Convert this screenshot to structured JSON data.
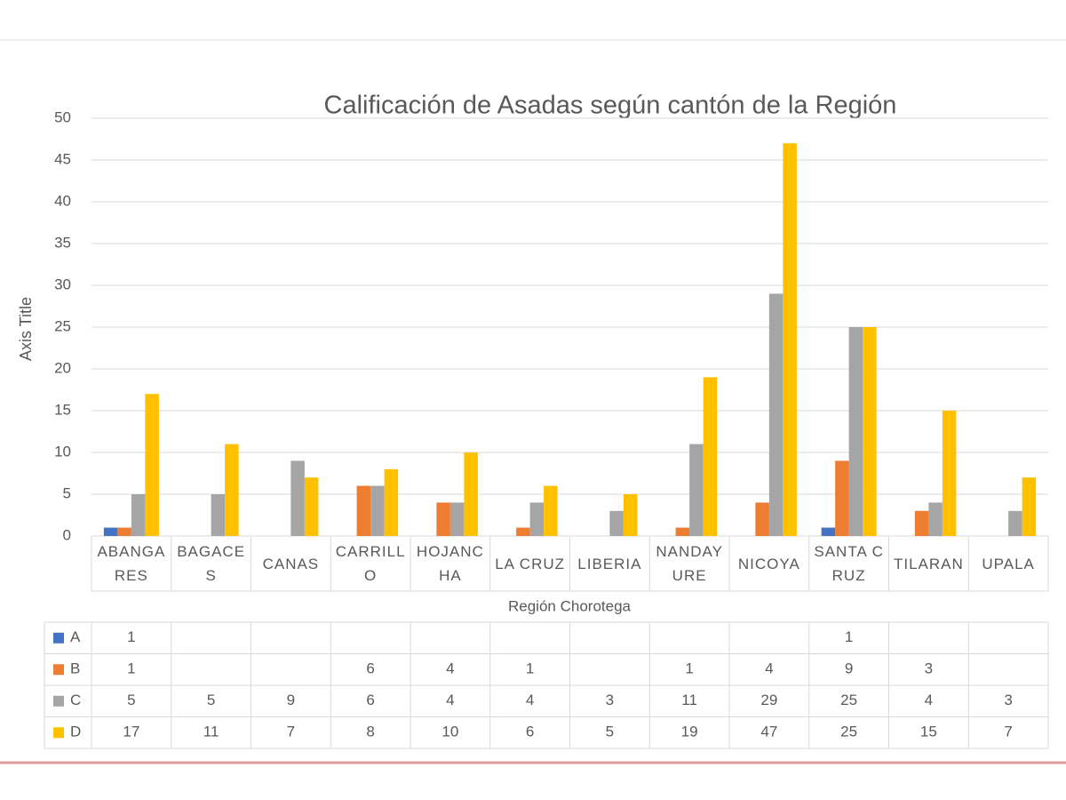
{
  "chart_data": {
    "type": "bar",
    "title": "Calificación de Asadas según cantón de la Región",
    "y_label": "Axis Title",
    "x_label": "Región Chorotega",
    "categories": [
      "ABANGARES",
      "BAGACES",
      "CANAS",
      "CARRILLO",
      "HOJANCHA",
      "LA CRUZ",
      "LIBERIA",
      "NANDAYURE",
      "NICOYA",
      "SANTA CRUZ",
      "TILARAN",
      "UPALA"
    ],
    "series": [
      {
        "name": "A",
        "color": "#4472c4",
        "values": [
          1,
          null,
          null,
          null,
          null,
          null,
          null,
          null,
          null,
          1,
          null,
          null
        ]
      },
      {
        "name": "B",
        "color": "#ed7d31",
        "values": [
          1,
          null,
          null,
          6,
          4,
          1,
          null,
          1,
          4,
          9,
          3,
          null
        ]
      },
      {
        "name": "C",
        "color": "#a5a5a5",
        "values": [
          5,
          5,
          9,
          6,
          4,
          4,
          3,
          11,
          29,
          25,
          4,
          3
        ]
      },
      {
        "name": "D",
        "color": "#ffc000",
        "values": [
          17,
          11,
          7,
          8,
          10,
          6,
          5,
          19,
          47,
          25,
          15,
          7
        ]
      }
    ],
    "ylim": [
      0,
      50
    ],
    "yticks": [
      0,
      5,
      10,
      15,
      20,
      25,
      30,
      35,
      40,
      45,
      50
    ],
    "grid": true
  }
}
